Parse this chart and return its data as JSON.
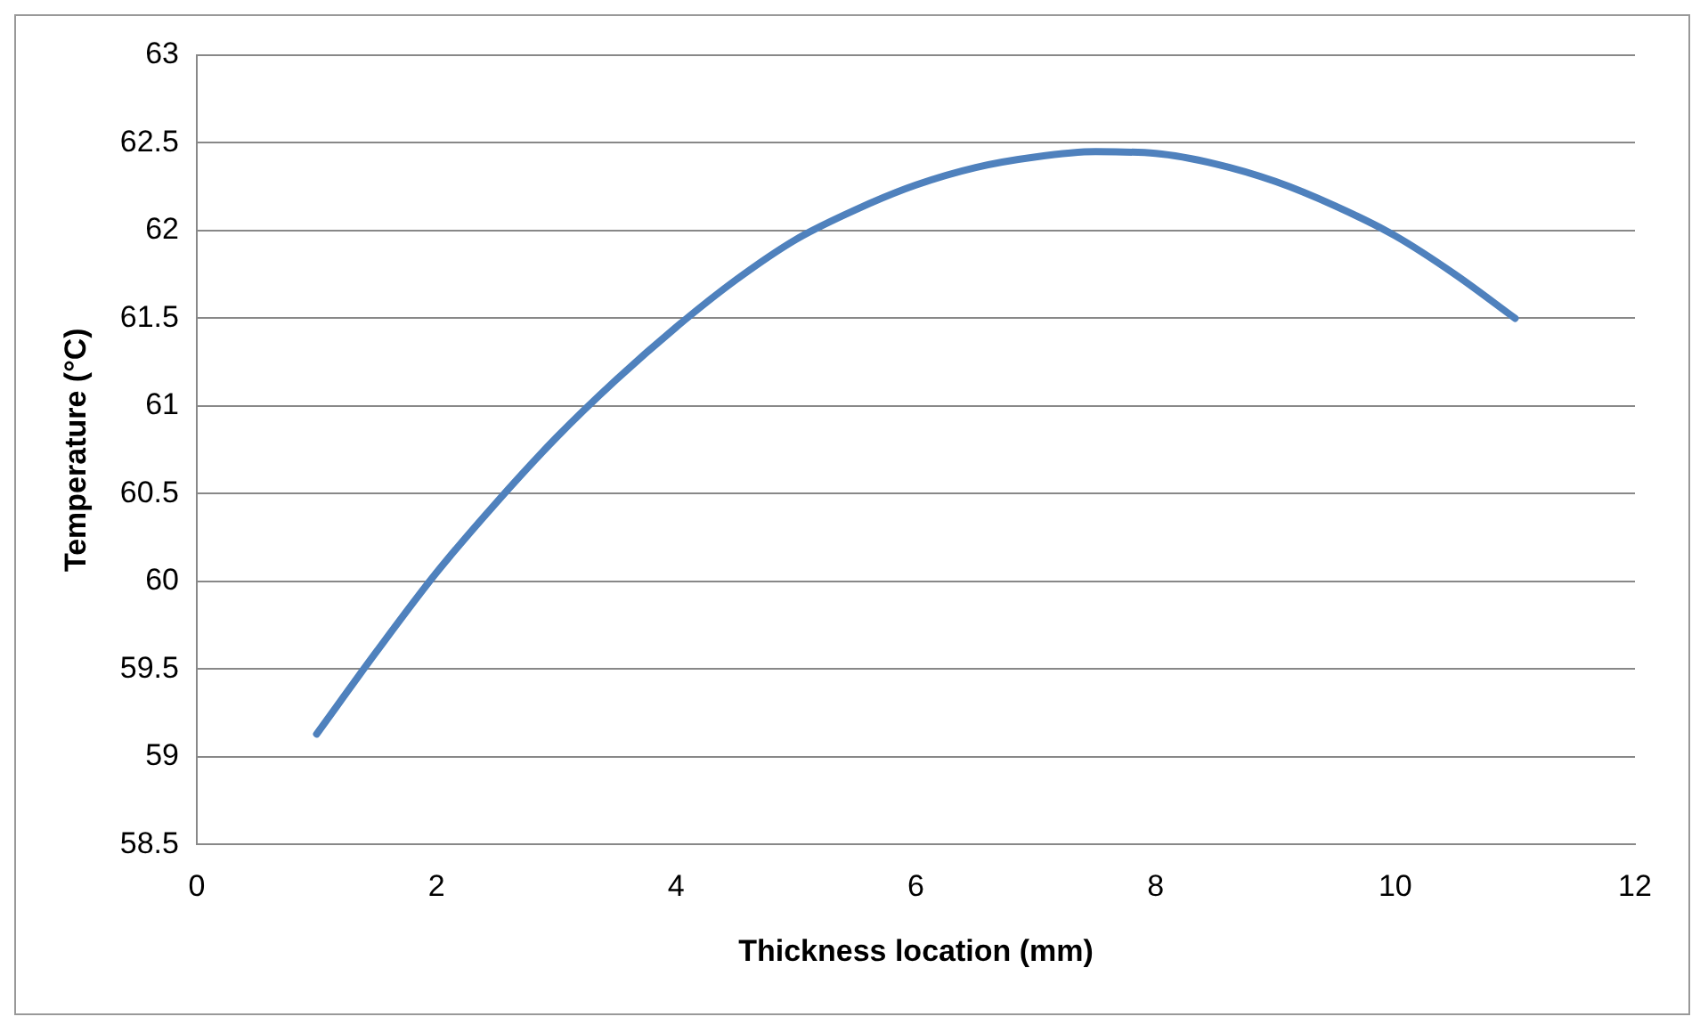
{
  "chart_data": {
    "type": "line",
    "xlabel": "Thickness location (mm)",
    "ylabel": "Temperature (°C)",
    "x": [
      1,
      1.5,
      2,
      2.5,
      3,
      3.5,
      4,
      4.5,
      5,
      5.5,
      6,
      6.5,
      7,
      7.5,
      8,
      8.5,
      9,
      9.5,
      10,
      10.5,
      11
    ],
    "series": [
      {
        "color": "#4f81bd",
        "values": [
          59.13,
          59.6,
          60.05,
          60.45,
          60.82,
          61.15,
          61.45,
          61.72,
          61.95,
          62.12,
          62.26,
          62.36,
          62.42,
          62.45,
          62.44,
          62.38,
          62.28,
          62.14,
          61.97,
          61.75,
          61.5
        ]
      }
    ],
    "xlim": [
      0,
      12
    ],
    "xticks": [
      0,
      2,
      4,
      6,
      8,
      10,
      12
    ],
    "ylim": [
      58.5,
      63
    ],
    "yticks": [
      58.5,
      59,
      59.5,
      60,
      60.5,
      61,
      61.5,
      62,
      62.5,
      63
    ],
    "grid": "y",
    "legend": false,
    "marker": "none",
    "line_style": "solid"
  }
}
